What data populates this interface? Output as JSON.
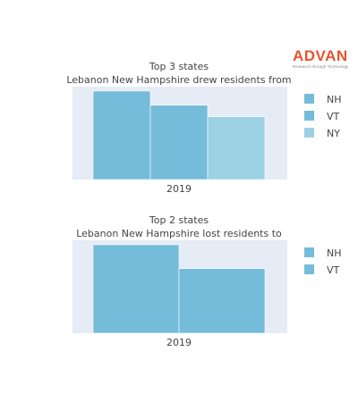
{
  "logo": {
    "name": "ADVAN",
    "tagline": "Research through Technology"
  },
  "colors": {
    "plot_bg": "#e5ecf6",
    "series": [
      "#74bcd9",
      "#74bcd9",
      "#9dd1e4"
    ]
  },
  "chart_data": [
    {
      "type": "bar",
      "title": "Top 3 states",
      "subtitle": "Lebanon New Hampshire drew residents from",
      "categories": [
        "2019"
      ],
      "series": [
        {
          "name": "NH",
          "values": [
            1.0
          ]
        },
        {
          "name": "VT",
          "values": [
            0.84
          ]
        },
        {
          "name": "NY",
          "values": [
            0.71
          ]
        }
      ],
      "ylim": [
        0,
        1.05
      ],
      "grid": false,
      "legend": "right"
    },
    {
      "type": "bar",
      "title": "Top 2 states",
      "subtitle": "Lebanon New Hampshire lost residents to",
      "categories": [
        "2019"
      ],
      "series": [
        {
          "name": "NH",
          "values": [
            1.0
          ]
        },
        {
          "name": "VT",
          "values": [
            0.73
          ]
        }
      ],
      "ylim": [
        0,
        1.05
      ],
      "grid": false,
      "legend": "right"
    }
  ]
}
